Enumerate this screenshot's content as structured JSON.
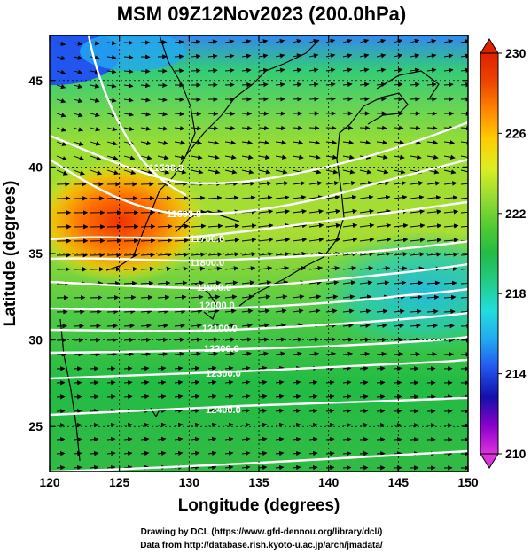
{
  "title": "MSM 09Z12Nov2023 (200.0hPa)",
  "x_axis": {
    "label": "Longitude (degrees)",
    "min": 120,
    "max": 150,
    "ticks": [
      "120",
      "125",
      "130",
      "135",
      "140",
      "145",
      "150"
    ]
  },
  "y_axis": {
    "label": "Latitude  (degrees)",
    "min": 22.4,
    "max": 47.6,
    "ticks": [
      "25",
      "30",
      "35",
      "40",
      "45"
    ]
  },
  "colorbar": {
    "min": 210,
    "max": 230,
    "ticks": [
      "210",
      "214",
      "218",
      "222",
      "226",
      "230"
    ],
    "colors": [
      "#dd33dd",
      "#8800cc",
      "#1111aa",
      "#2255ee",
      "#22aaee",
      "#22dddd",
      "#22cc88",
      "#22bb44",
      "#55cc33",
      "#99dd33",
      "#ddee22",
      "#ffcc00",
      "#ff8800",
      "#ee4400",
      "#dd2200"
    ]
  },
  "contours": {
    "color": "#ffffff",
    "labels": [
      "11500.0",
      "11600.0",
      "11700.0",
      "11800.0",
      "11900.0",
      "12000.0",
      "12100.0",
      "12200.0",
      "12300.0",
      "12400.0"
    ]
  },
  "credits": {
    "line1": "Drawing by DCL (https://www.gfd-dennou.org/library/dcl/)",
    "line2": "Data from http://database.rish.kyoto-u.ac.jp/arch/jmadata/"
  }
}
